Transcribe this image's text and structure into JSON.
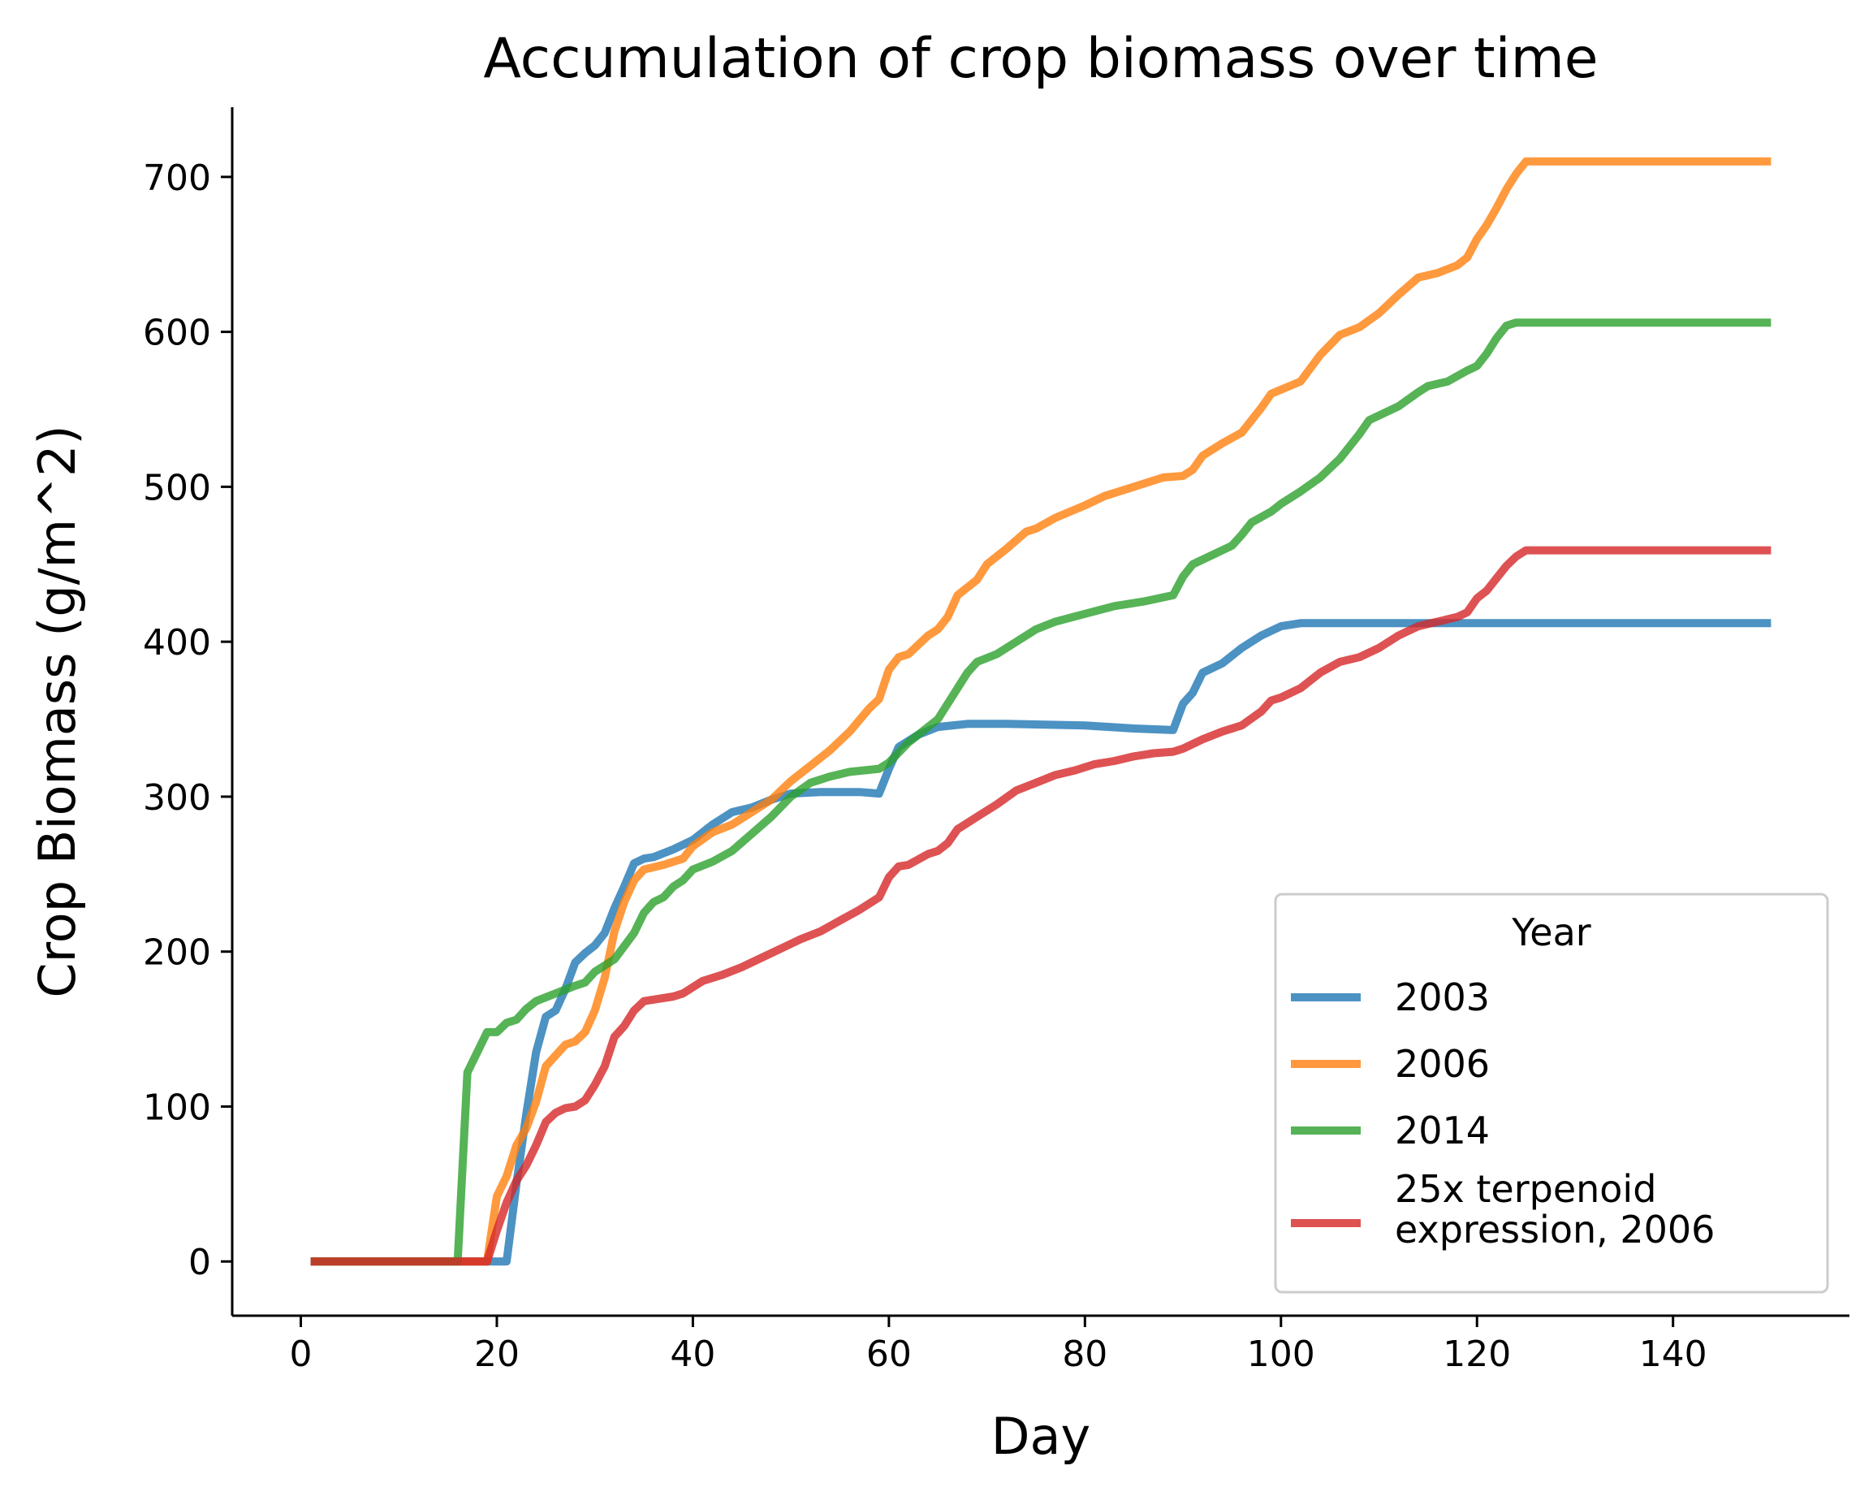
{
  "chart_data": {
    "type": "line",
    "title": "Accumulation of crop biomass over time",
    "xlabel": "Day",
    "ylabel": "Crop Biomass (g/m^2)",
    "xlim": [
      -7,
      158
    ],
    "ylim": [
      -35,
      745
    ],
    "xticks": [
      0,
      20,
      40,
      60,
      80,
      100,
      120,
      140
    ],
    "yticks": [
      0,
      100,
      200,
      300,
      400,
      500,
      600,
      700
    ],
    "grid": false,
    "legend": {
      "title": "Year",
      "position": "lower-right"
    },
    "series": [
      {
        "name": "2003",
        "color": "#1f77b4",
        "points": [
          [
            1,
            0
          ],
          [
            21,
            0
          ],
          [
            22,
            50
          ],
          [
            23,
            95
          ],
          [
            24,
            135
          ],
          [
            25,
            158
          ],
          [
            26,
            162
          ],
          [
            27,
            176
          ],
          [
            28,
            193
          ],
          [
            29,
            199
          ],
          [
            30,
            204
          ],
          [
            31,
            212
          ],
          [
            32,
            228
          ],
          [
            33,
            242
          ],
          [
            34,
            257
          ],
          [
            35,
            260
          ],
          [
            36,
            261
          ],
          [
            38,
            266
          ],
          [
            40,
            272
          ],
          [
            42,
            282
          ],
          [
            44,
            290
          ],
          [
            46,
            293
          ],
          [
            48,
            298
          ],
          [
            50,
            302
          ],
          [
            53,
            303
          ],
          [
            57,
            303
          ],
          [
            59,
            302
          ],
          [
            60,
            318
          ],
          [
            61,
            332
          ],
          [
            63,
            340
          ],
          [
            65,
            345
          ],
          [
            68,
            347
          ],
          [
            72,
            347
          ],
          [
            80,
            346
          ],
          [
            85,
            344
          ],
          [
            89,
            343
          ],
          [
            90,
            360
          ],
          [
            91,
            367
          ],
          [
            92,
            380
          ],
          [
            94,
            386
          ],
          [
            96,
            396
          ],
          [
            98,
            404
          ],
          [
            100,
            410
          ],
          [
            102,
            412
          ],
          [
            150,
            412
          ]
        ]
      },
      {
        "name": "2006",
        "color": "#ff7f0e",
        "points": [
          [
            1,
            0
          ],
          [
            19,
            0
          ],
          [
            20,
            42
          ],
          [
            21,
            55
          ],
          [
            22,
            75
          ],
          [
            23,
            86
          ],
          [
            24,
            103
          ],
          [
            25,
            126
          ],
          [
            26,
            133
          ],
          [
            27,
            140
          ],
          [
            28,
            142
          ],
          [
            29,
            148
          ],
          [
            30,
            162
          ],
          [
            31,
            183
          ],
          [
            32,
            213
          ],
          [
            33,
            232
          ],
          [
            34,
            246
          ],
          [
            35,
            253
          ],
          [
            37,
            256
          ],
          [
            39,
            260
          ],
          [
            40,
            268
          ],
          [
            42,
            277
          ],
          [
            44,
            282
          ],
          [
            46,
            290
          ],
          [
            48,
            298
          ],
          [
            50,
            310
          ],
          [
            52,
            320
          ],
          [
            54,
            330
          ],
          [
            56,
            342
          ],
          [
            58,
            357
          ],
          [
            59,
            363
          ],
          [
            60,
            382
          ],
          [
            61,
            390
          ],
          [
            62,
            392
          ],
          [
            64,
            404
          ],
          [
            65,
            408
          ],
          [
            66,
            416
          ],
          [
            67,
            430
          ],
          [
            69,
            440
          ],
          [
            70,
            450
          ],
          [
            72,
            460
          ],
          [
            74,
            471
          ],
          [
            75,
            473
          ],
          [
            77,
            480
          ],
          [
            80,
            488
          ],
          [
            82,
            494
          ],
          [
            85,
            500
          ],
          [
            88,
            506
          ],
          [
            90,
            507
          ],
          [
            91,
            511
          ],
          [
            92,
            520
          ],
          [
            94,
            528
          ],
          [
            96,
            535
          ],
          [
            98,
            551
          ],
          [
            99,
            560
          ],
          [
            102,
            568
          ],
          [
            104,
            585
          ],
          [
            106,
            598
          ],
          [
            108,
            603
          ],
          [
            110,
            612
          ],
          [
            112,
            624
          ],
          [
            114,
            635
          ],
          [
            116,
            638
          ],
          [
            118,
            643
          ],
          [
            119,
            648
          ],
          [
            120,
            660
          ],
          [
            121,
            669
          ],
          [
            122,
            680
          ],
          [
            123,
            692
          ],
          [
            124,
            702
          ],
          [
            125,
            710
          ],
          [
            150,
            710
          ]
        ]
      },
      {
        "name": "2014",
        "color": "#2ca02c",
        "points": [
          [
            1,
            0
          ],
          [
            16,
            0
          ],
          [
            17,
            122
          ],
          [
            19,
            148
          ],
          [
            20,
            148
          ],
          [
            21,
            154
          ],
          [
            22,
            156
          ],
          [
            23,
            163
          ],
          [
            24,
            168
          ],
          [
            26,
            173
          ],
          [
            28,
            178
          ],
          [
            29,
            180
          ],
          [
            30,
            187
          ],
          [
            32,
            195
          ],
          [
            34,
            212
          ],
          [
            35,
            225
          ],
          [
            36,
            232
          ],
          [
            37,
            235
          ],
          [
            38,
            242
          ],
          [
            39,
            246
          ],
          [
            40,
            253
          ],
          [
            42,
            258
          ],
          [
            44,
            265
          ],
          [
            46,
            276
          ],
          [
            48,
            287
          ],
          [
            50,
            300
          ],
          [
            52,
            309
          ],
          [
            54,
            313
          ],
          [
            56,
            316
          ],
          [
            59,
            318
          ],
          [
            60,
            322
          ],
          [
            62,
            335
          ],
          [
            64,
            345
          ],
          [
            65,
            350
          ],
          [
            66,
            360
          ],
          [
            68,
            380
          ],
          [
            69,
            387
          ],
          [
            71,
            392
          ],
          [
            73,
            400
          ],
          [
            75,
            408
          ],
          [
            77,
            413
          ],
          [
            80,
            418
          ],
          [
            83,
            423
          ],
          [
            86,
            426
          ],
          [
            89,
            430
          ],
          [
            90,
            442
          ],
          [
            91,
            450
          ],
          [
            93,
            456
          ],
          [
            95,
            462
          ],
          [
            96,
            469
          ],
          [
            97,
            477
          ],
          [
            99,
            484
          ],
          [
            100,
            489
          ],
          [
            102,
            497
          ],
          [
            104,
            506
          ],
          [
            106,
            518
          ],
          [
            108,
            534
          ],
          [
            109,
            543
          ],
          [
            110,
            546
          ],
          [
            112,
            552
          ],
          [
            114,
            561
          ],
          [
            115,
            565
          ],
          [
            117,
            568
          ],
          [
            119,
            575
          ],
          [
            120,
            578
          ],
          [
            121,
            586
          ],
          [
            122,
            596
          ],
          [
            123,
            604
          ],
          [
            124,
            606
          ],
          [
            150,
            606
          ]
        ]
      },
      {
        "name": "25x terpenoid\nexpression, 2006",
        "color": "#d62728",
        "points": [
          [
            1,
            0
          ],
          [
            19,
            0
          ],
          [
            20,
            20
          ],
          [
            21,
            38
          ],
          [
            22,
            52
          ],
          [
            23,
            62
          ],
          [
            24,
            75
          ],
          [
            25,
            90
          ],
          [
            26,
            96
          ],
          [
            27,
            99
          ],
          [
            28,
            100
          ],
          [
            29,
            104
          ],
          [
            30,
            114
          ],
          [
            31,
            126
          ],
          [
            32,
            145
          ],
          [
            33,
            152
          ],
          [
            34,
            162
          ],
          [
            35,
            168
          ],
          [
            36,
            169
          ],
          [
            38,
            171
          ],
          [
            39,
            173
          ],
          [
            41,
            181
          ],
          [
            43,
            185
          ],
          [
            45,
            190
          ],
          [
            47,
            196
          ],
          [
            49,
            202
          ],
          [
            51,
            208
          ],
          [
            53,
            213
          ],
          [
            55,
            220
          ],
          [
            57,
            227
          ],
          [
            59,
            235
          ],
          [
            60,
            248
          ],
          [
            61,
            255
          ],
          [
            62,
            256
          ],
          [
            64,
            263
          ],
          [
            65,
            265
          ],
          [
            66,
            270
          ],
          [
            67,
            279
          ],
          [
            69,
            287
          ],
          [
            71,
            295
          ],
          [
            73,
            304
          ],
          [
            75,
            309
          ],
          [
            77,
            314
          ],
          [
            79,
            317
          ],
          [
            81,
            321
          ],
          [
            83,
            323
          ],
          [
            85,
            326
          ],
          [
            87,
            328
          ],
          [
            89,
            329
          ],
          [
            90,
            331
          ],
          [
            92,
            337
          ],
          [
            94,
            342
          ],
          [
            96,
            346
          ],
          [
            98,
            355
          ],
          [
            99,
            362
          ],
          [
            100,
            364
          ],
          [
            102,
            370
          ],
          [
            104,
            380
          ],
          [
            106,
            387
          ],
          [
            108,
            390
          ],
          [
            110,
            396
          ],
          [
            112,
            404
          ],
          [
            114,
            410
          ],
          [
            116,
            413
          ],
          [
            118,
            416
          ],
          [
            119,
            419
          ],
          [
            120,
            428
          ],
          [
            121,
            433
          ],
          [
            122,
            441
          ],
          [
            123,
            449
          ],
          [
            124,
            455
          ],
          [
            125,
            459
          ],
          [
            150,
            459
          ]
        ]
      }
    ]
  }
}
